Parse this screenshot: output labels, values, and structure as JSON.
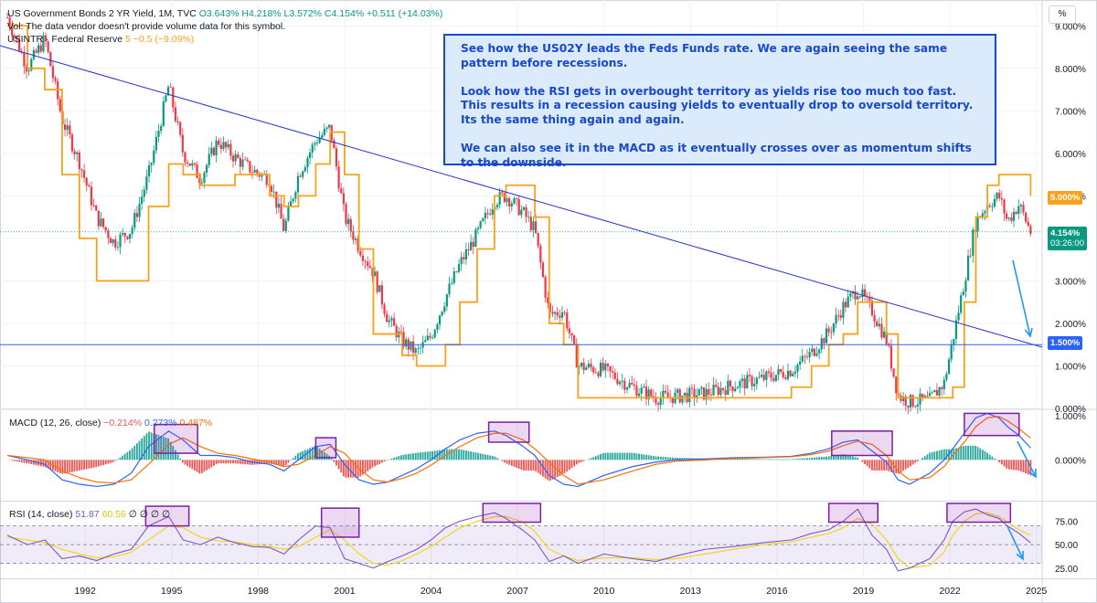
{
  "legend": {
    "symbol": "US Government Bonds 2 YR Yield, 1M, TVC",
    "open": "O3.643%",
    "high": "H4.218%",
    "low": "L3.572%",
    "close": "C4.154%",
    "change": "+0.511 (+14.03%)",
    "vol_note": "Vol: The data vendor doesn't provide volume data for this symbol.",
    "fed_symbol": "USINTR · Federal Reserve",
    "fed_value": "5",
    "fed_change": "−0.5 (−9.09%)"
  },
  "annotation": {
    "p1": "See how the US02Y leads the Feds Funds rate. We are again seeing the same pattern before recessions.",
    "p2": "Look how the RSI gets in overbought territory as yields rise too much too fast. This results in a recession causing yields to eventually drop to oversold territory. Its the same thing again and again.",
    "p3": "We can also see it in the MACD as it eventually crosses over as momentum shifts to the downside."
  },
  "price_scale": {
    "unit": "%",
    "labels": [
      "9.000%",
      "8.000%",
      "7.000%",
      "6.000%",
      "5.000%",
      "4.000%",
      "3.000%",
      "2.000%",
      "1.000%",
      "0.000%"
    ],
    "tag_fed": "5.000%",
    "tag_last": "4.154%",
    "tag_countdown": "03:26:00",
    "tag_line": "1.500%"
  },
  "macd_legend": {
    "title": "MACD (12, 26, close)",
    "hist": "−0.214%",
    "macd": "0.273%",
    "signal": "0.487%"
  },
  "macd_scale": [
    "1.000%",
    "0.000%"
  ],
  "rsi_legend": {
    "title": "RSI (14, close)",
    "rsi": "51.87",
    "ma": "60.56",
    "extra": "∅ ∅ ∅ ∅"
  },
  "rsi_scale": [
    "75.00",
    "50.00",
    "25.00"
  ],
  "time_axis": [
    "1992",
    "1995",
    "1998",
    "2001",
    "2004",
    "2007",
    "2010",
    "2013",
    "2016",
    "2019",
    "2022",
    "2025"
  ],
  "colors": {
    "up": "#089981",
    "down": "#f23645",
    "fed": "#f7a21b",
    "trend": "#2433c9",
    "hline": "#2962ff",
    "macd": "#2962ff",
    "signal": "#ff6d00",
    "rsi": "#7e57c2",
    "rsi_ma": "#f2d61b",
    "box": "#7b1fa2",
    "arrow": "#2196f3"
  },
  "chart_data": [
    {
      "type": "line",
      "title": "US Government Bonds 2 YR Yield, 1M, TVC",
      "x": [
        1989.3,
        1990.0,
        1990.6,
        1991.2,
        1991.8,
        1992.4,
        1993.0,
        1993.6,
        1994.2,
        1994.9,
        1995.4,
        1996.0,
        1996.6,
        1997.2,
        1997.8,
        1998.4,
        1998.9,
        1999.4,
        2000.0,
        2000.5,
        2001.0,
        2001.5,
        2002.0,
        2002.5,
        2003.0,
        2003.5,
        2004.0,
        2004.5,
        2005.0,
        2005.6,
        2006.2,
        2006.6,
        2007.2,
        2007.6,
        2008.1,
        2008.6,
        2009.1,
        2010.0,
        2011.0,
        2011.8,
        2012.5,
        2013.5,
        2014.5,
        2015.5,
        2016.5,
        2017.2,
        2017.8,
        2018.3,
        2018.8,
        2019.3,
        2019.8,
        2020.2,
        2020.6,
        2021.3,
        2021.8,
        2022.1,
        2022.5,
        2022.9,
        2023.3,
        2023.7,
        2024.0,
        2024.4,
        2024.8
      ],
      "series": [
        {
          "name": "US Government Bonds 2 YR Yield",
          "values": [
            9.2,
            8.0,
            8.7,
            6.8,
            5.8,
            4.5,
            3.9,
            4.2,
            5.5,
            7.6,
            6.0,
            5.4,
            6.3,
            5.9,
            5.6,
            5.4,
            4.2,
            5.5,
            6.3,
            6.6,
            4.5,
            3.8,
            3.2,
            2.1,
            1.6,
            1.3,
            1.7,
            2.6,
            3.4,
            4.1,
            4.9,
            5.0,
            4.6,
            4.2,
            2.2,
            2.3,
            1.0,
            0.9,
            0.5,
            0.25,
            0.28,
            0.35,
            0.55,
            0.7,
            0.9,
            1.3,
            1.8,
            2.4,
            2.8,
            2.3,
            1.6,
            0.3,
            0.15,
            0.2,
            0.6,
            1.6,
            3.0,
            4.4,
            4.8,
            5.0,
            4.4,
            4.8,
            4.15
          ]
        },
        {
          "name": "USINTR · Federal Reserve",
          "values": [
            9.0,
            8.0,
            7.5,
            5.5,
            4.0,
            3.0,
            3.0,
            3.0,
            4.75,
            5.75,
            5.5,
            5.25,
            5.25,
            5.5,
            5.5,
            5.0,
            4.75,
            5.0,
            5.75,
            6.5,
            5.5,
            3.75,
            1.75,
            1.75,
            1.25,
            1.0,
            1.0,
            1.5,
            2.5,
            3.75,
            5.0,
            5.25,
            5.25,
            4.5,
            2.0,
            1.5,
            0.25,
            0.25,
            0.25,
            0.25,
            0.25,
            0.25,
            0.25,
            0.25,
            0.5,
            1.0,
            1.5,
            1.75,
            2.5,
            2.5,
            1.75,
            0.25,
            0.25,
            0.25,
            0.25,
            0.5,
            2.5,
            4.5,
            5.25,
            5.5,
            5.5,
            5.5,
            5.0
          ]
        }
      ],
      "ylabel": "%",
      "ylim": [
        0,
        9.5
      ]
    },
    {
      "type": "line",
      "title": "MACD (12, 26, close)",
      "x": [
        1989.3,
        1990.0,
        1990.6,
        1991.2,
        1991.8,
        1992.4,
        1993.0,
        1993.6,
        1994.2,
        1994.9,
        1995.4,
        1996.0,
        1996.6,
        1997.2,
        1997.8,
        1998.4,
        1998.9,
        1999.4,
        2000.0,
        2000.5,
        2001.0,
        2001.5,
        2002.0,
        2002.5,
        2003.0,
        2003.5,
        2004.0,
        2004.5,
        2005.0,
        2005.6,
        2006.2,
        2006.6,
        2007.2,
        2007.6,
        2008.1,
        2008.6,
        2009.1,
        2010.0,
        2011.0,
        2011.8,
        2012.5,
        2013.5,
        2014.5,
        2015.5,
        2016.5,
        2017.2,
        2017.8,
        2018.3,
        2018.8,
        2019.3,
        2019.8,
        2020.2,
        2020.6,
        2021.3,
        2021.8,
        2022.1,
        2022.5,
        2022.9,
        2023.3,
        2023.7,
        2024.0,
        2024.4,
        2024.8
      ],
      "series": [
        {
          "name": "MACD",
          "values": [
            0.1,
            0.0,
            -0.1,
            -0.45,
            -0.55,
            -0.6,
            -0.55,
            -0.3,
            0.3,
            0.65,
            0.45,
            0.1,
            0.1,
            0.05,
            -0.05,
            -0.1,
            -0.25,
            0.0,
            0.3,
            0.35,
            -0.1,
            -0.45,
            -0.55,
            -0.5,
            -0.35,
            -0.2,
            0.0,
            0.25,
            0.45,
            0.6,
            0.65,
            0.55,
            0.3,
            0.1,
            -0.35,
            -0.55,
            -0.6,
            -0.35,
            -0.15,
            -0.05,
            0.0,
            0.02,
            0.05,
            0.06,
            0.08,
            0.15,
            0.25,
            0.4,
            0.45,
            0.2,
            -0.05,
            -0.45,
            -0.55,
            -0.3,
            0.0,
            0.25,
            0.6,
            0.95,
            1.05,
            0.95,
            0.75,
            0.55,
            0.27
          ]
        },
        {
          "name": "Signal",
          "values": [
            0.1,
            0.05,
            0.0,
            -0.25,
            -0.4,
            -0.5,
            -0.52,
            -0.45,
            -0.1,
            0.35,
            0.5,
            0.3,
            0.15,
            0.1,
            0.02,
            -0.05,
            -0.15,
            -0.1,
            0.1,
            0.3,
            0.15,
            -0.2,
            -0.45,
            -0.5,
            -0.42,
            -0.3,
            -0.12,
            0.1,
            0.3,
            0.5,
            0.6,
            0.6,
            0.45,
            0.25,
            -0.05,
            -0.35,
            -0.55,
            -0.45,
            -0.25,
            -0.1,
            -0.03,
            0.0,
            0.03,
            0.05,
            0.07,
            0.12,
            0.2,
            0.32,
            0.42,
            0.35,
            0.1,
            -0.25,
            -0.45,
            -0.4,
            -0.15,
            0.1,
            0.4,
            0.75,
            0.95,
            0.98,
            0.88,
            0.7,
            0.49
          ]
        }
      ],
      "ylim": [
        -0.9,
        1.1
      ]
    },
    {
      "type": "line",
      "title": "RSI (14, close)",
      "x": [
        1989.3,
        1990.0,
        1990.6,
        1991.2,
        1991.8,
        1992.4,
        1993.0,
        1993.6,
        1994.2,
        1994.9,
        1995.4,
        1996.0,
        1996.6,
        1997.2,
        1997.8,
        1998.4,
        1998.9,
        1999.4,
        2000.0,
        2000.5,
        2001.0,
        2001.5,
        2002.0,
        2002.5,
        2003.0,
        2003.5,
        2004.0,
        2004.5,
        2005.0,
        2005.6,
        2006.2,
        2006.6,
        2007.2,
        2007.6,
        2008.1,
        2008.6,
        2009.1,
        2010.0,
        2011.0,
        2011.8,
        2012.5,
        2013.5,
        2014.5,
        2015.5,
        2016.5,
        2017.2,
        2017.8,
        2018.3,
        2018.8,
        2019.3,
        2019.8,
        2020.2,
        2020.6,
        2021.3,
        2021.8,
        2022.1,
        2022.5,
        2022.9,
        2023.3,
        2023.7,
        2024.0,
        2024.4,
        2024.8
      ],
      "series": [
        {
          "name": "RSI",
          "values": [
            60,
            50,
            55,
            35,
            38,
            33,
            40,
            45,
            70,
            80,
            55,
            50,
            58,
            52,
            48,
            47,
            40,
            55,
            70,
            68,
            35,
            30,
            25,
            32,
            38,
            45,
            55,
            68,
            75,
            80,
            84,
            78,
            65,
            55,
            32,
            38,
            30,
            40,
            35,
            32,
            38,
            45,
            48,
            52,
            55,
            62,
            66,
            75,
            88,
            60,
            45,
            22,
            25,
            35,
            55,
            75,
            85,
            88,
            82,
            78,
            70,
            62,
            52
          ]
        },
        {
          "name": "RSI MA",
          "values": [
            58,
            55,
            52,
            45,
            40,
            36,
            37,
            42,
            55,
            70,
            68,
            58,
            54,
            53,
            50,
            48,
            45,
            48,
            58,
            66,
            55,
            40,
            30,
            28,
            33,
            40,
            48,
            58,
            68,
            75,
            80,
            80,
            74,
            64,
            45,
            38,
            33,
            36,
            36,
            34,
            35,
            40,
            45,
            50,
            53,
            58,
            62,
            68,
            78,
            72,
            55,
            35,
            25,
            28,
            42,
            60,
            75,
            83,
            84,
            80,
            74,
            66,
            60
          ]
        }
      ],
      "ylim": [
        15,
        95
      ]
    }
  ]
}
